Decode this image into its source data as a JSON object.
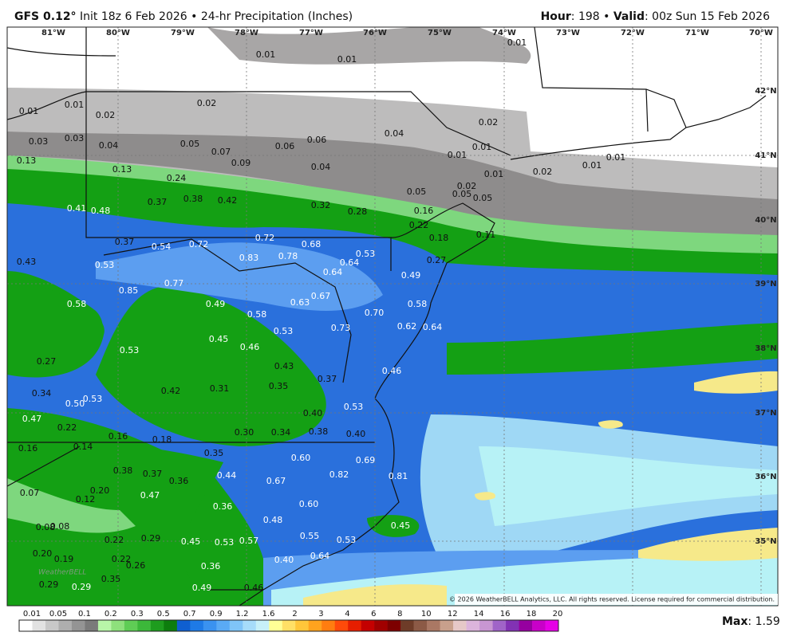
{
  "header": {
    "model": "GFS 0.12°",
    "description": "Init 18z 6 Feb 2026 • 24-hr Precipitation (Inches)",
    "hour_label": "Hour",
    "hour_text": ": 198 •",
    "valid_label": "Valid",
    "valid_text": ": 00z Sun 15 Feb 2026"
  },
  "map": {
    "lon_labels": [
      "81°W",
      "80°W",
      "79°W",
      "78°W",
      "77°W",
      "76°W",
      "75°W",
      "74°W",
      "73°W",
      "72°W",
      "71°W",
      "70°W"
    ],
    "lat_labels": [
      "42°N",
      "41°N",
      "40°N",
      "39°N",
      "38°N",
      "37°N",
      "36°N",
      "35°N"
    ],
    "values": [
      "0.01",
      "0.01",
      "0.01",
      "0.01",
      "0.01",
      "0.02",
      "0.02",
      "0.02",
      "0.03",
      "0.03",
      "0.04",
      "0.05",
      "0.07",
      "0.06",
      "0.06",
      "0.04",
      "0.01",
      "0.01",
      "0.13",
      "0.09",
      "0.04",
      "0.13",
      "0.24",
      "0.01",
      "0.02",
      "0.01",
      "0.01",
      "0.02",
      "0.41",
      "0.48",
      "0.37",
      "0.38",
      "0.42",
      "0.32",
      "0.28",
      "0.05",
      "0.05",
      "0.05",
      "0.16",
      "0.22",
      "0.18",
      "0.11",
      "0.37",
      "0.54",
      "0.72",
      "0.72",
      "0.68",
      "0.83",
      "0.78",
      "0.53",
      "0.64",
      "0.27",
      "0.43",
      "0.53",
      "0.64",
      "0.49",
      "0.85",
      "0.77",
      "0.58",
      "0.49",
      "0.58",
      "0.63",
      "0.67",
      "0.70",
      "0.58",
      "0.73",
      "0.62",
      "0.64",
      "0.53",
      "0.45",
      "0.46",
      "0.53",
      "0.27",
      "0.43",
      "0.46",
      "0.37",
      "0.35",
      "0.42",
      "0.31",
      "0.34",
      "0.53",
      "0.50",
      "0.47",
      "0.53",
      "0.40",
      "0.22",
      "0.16",
      "0.18",
      "0.30",
      "0.34",
      "0.38",
      "0.40",
      "0.16",
      "0.14",
      "0.35",
      "0.60",
      "0.69",
      "0.38",
      "0.37",
      "0.36",
      "0.44",
      "0.67",
      "0.82",
      "0.81",
      "0.20",
      "0.07",
      "0.12",
      "0.47",
      "0.36",
      "0.60",
      "0.48",
      "0.45",
      "0.08",
      "0.08",
      "0.22",
      "0.29",
      "0.45",
      "0.53",
      "0.57",
      "0.55",
      "0.53",
      "0.20",
      "0.19",
      "0.22",
      "0.26",
      "0.64",
      "0.40",
      "0.36",
      "0.29",
      "0.35",
      "0.29",
      "0.49",
      "0.46"
    ],
    "logo": "WeatherBELL",
    "copyright": "© 2026 WeatherBELL Analytics, LLC. All rights reserved. License required for commercial distribution."
  },
  "legend": {
    "labels": [
      "0.01",
      "0.05",
      "0.1",
      "0.2",
      "0.3",
      "0.5",
      "0.7",
      "0.9",
      "1.2",
      "1.6",
      "2",
      "3",
      "4",
      "6",
      "8",
      "10",
      "12",
      "14",
      "16",
      "18",
      "20"
    ],
    "max_label": "Max",
    "max_value": ": 1.59"
  }
}
